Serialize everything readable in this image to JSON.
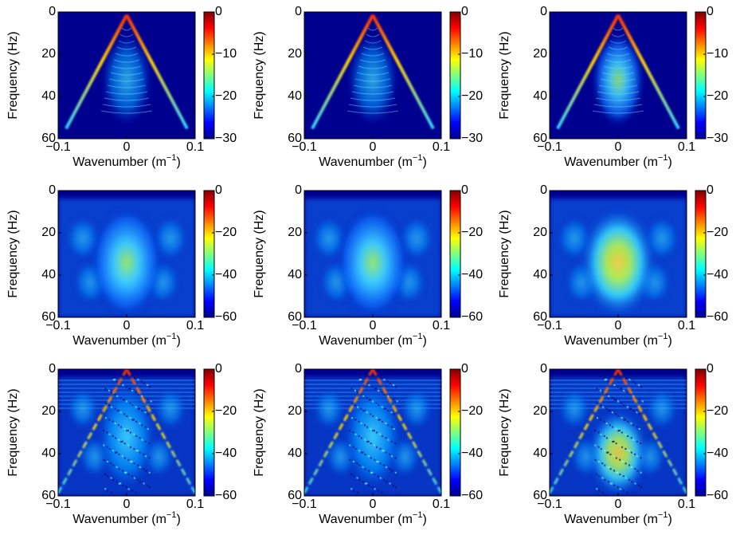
{
  "chart_data": [
    {
      "type": "heatmap",
      "colormap": "jet",
      "xlabel": [
        "Wavenumber (m",
        "−1",
        ")"
      ],
      "ylabel": "Frequency (Hz)",
      "xlim": [
        -0.1,
        0.1
      ],
      "xticks": [
        {
          "value": -0.1,
          "label": "−0.1"
        },
        0,
        0.1
      ],
      "ylim": [
        60,
        0
      ],
      "yticks": [
        0,
        20,
        40,
        60
      ],
      "clim": [
        -30,
        0
      ],
      "cticks": [
        {
          "value": -30,
          "label": "−30"
        },
        {
          "value": -20,
          "label": "−20"
        },
        {
          "value": -10,
          "label": "−10"
        },
        0
      ]
    },
    {
      "type": "heatmap",
      "colormap": "jet",
      "xlabel": [
        "Wavenumber (m",
        "−1",
        ")"
      ],
      "ylabel": "Frequency (Hz)",
      "xlim": [
        -0.1,
        0.1
      ],
      "xticks": [
        {
          "value": -0.1,
          "label": "−0.1"
        },
        0,
        0.1
      ],
      "ylim": [
        60,
        0
      ],
      "yticks": [
        0,
        20,
        40,
        60
      ],
      "clim": [
        -30,
        0
      ],
      "cticks": [
        {
          "value": -30,
          "label": "−30"
        },
        {
          "value": -20,
          "label": "−20"
        },
        {
          "value": -10,
          "label": "−10"
        },
        0
      ]
    },
    {
      "type": "heatmap",
      "colormap": "jet",
      "xlabel": [
        "Wavenumber (m",
        "−1",
        ")"
      ],
      "ylabel": "Frequency (Hz)",
      "xlim": [
        -0.1,
        0.1
      ],
      "xticks": [
        {
          "value": -0.1,
          "label": "−0.1"
        },
        0,
        0.1
      ],
      "ylim": [
        60,
        0
      ],
      "yticks": [
        0,
        20,
        40,
        60
      ],
      "clim": [
        -30,
        0
      ],
      "cticks": [
        {
          "value": -30,
          "label": "−30"
        },
        {
          "value": -20,
          "label": "−20"
        },
        {
          "value": -10,
          "label": "−10"
        },
        0
      ]
    },
    {
      "type": "heatmap",
      "colormap": "jet",
      "xlabel": [
        "Wavenumber (m",
        "−1",
        ")"
      ],
      "ylabel": "Frequency (Hz)",
      "xlim": [
        -0.1,
        0.1
      ],
      "xticks": [
        {
          "value": -0.1,
          "label": "−0.1"
        },
        0,
        0.1
      ],
      "ylim": [
        60,
        0
      ],
      "yticks": [
        0,
        20,
        40,
        60
      ],
      "clim": [
        -60,
        0
      ],
      "cticks": [
        {
          "value": -60,
          "label": "−60"
        },
        {
          "value": -40,
          "label": "−40"
        },
        {
          "value": -20,
          "label": "−20"
        },
        0
      ]
    },
    {
      "type": "heatmap",
      "colormap": "jet",
      "xlabel": [
        "Wavenumber (m",
        "−1",
        ")"
      ],
      "ylabel": "Frequency (Hz)",
      "xlim": [
        -0.1,
        0.1
      ],
      "xticks": [
        {
          "value": -0.1,
          "label": "−0.1"
        },
        0,
        0.1
      ],
      "ylim": [
        60,
        0
      ],
      "yticks": [
        0,
        20,
        40,
        60
      ],
      "clim": [
        -60,
        0
      ],
      "cticks": [
        {
          "value": -60,
          "label": "−60"
        },
        {
          "value": -40,
          "label": "−40"
        },
        {
          "value": -20,
          "label": "−20"
        },
        0
      ]
    },
    {
      "type": "heatmap",
      "colormap": "jet",
      "xlabel": [
        "Wavenumber (m",
        "−1",
        ")"
      ],
      "ylabel": "Frequency (Hz)",
      "xlim": [
        -0.1,
        0.1
      ],
      "xticks": [
        {
          "value": -0.1,
          "label": "−0.1"
        },
        0,
        0.1
      ],
      "ylim": [
        60,
        0
      ],
      "yticks": [
        0,
        20,
        40,
        60
      ],
      "clim": [
        -60,
        0
      ],
      "cticks": [
        {
          "value": -60,
          "label": "−60"
        },
        {
          "value": -40,
          "label": "−40"
        },
        {
          "value": -20,
          "label": "−20"
        },
        0
      ]
    },
    {
      "type": "heatmap",
      "colormap": "jet",
      "xlabel": [
        "Wavenumber (m",
        "−1",
        ")"
      ],
      "ylabel": "Frequency (Hz)",
      "xlim": [
        -0.1,
        0.1
      ],
      "xticks": [
        {
          "value": -0.1,
          "label": "−0.1"
        },
        0,
        0.1
      ],
      "ylim": [
        60,
        0
      ],
      "yticks": [
        0,
        20,
        40,
        60
      ],
      "clim": [
        -60,
        0
      ],
      "cticks": [
        {
          "value": -60,
          "label": "−60"
        },
        {
          "value": -40,
          "label": "−40"
        },
        {
          "value": -20,
          "label": "−20"
        },
        0
      ]
    },
    {
      "type": "heatmap",
      "colormap": "jet",
      "xlabel": [
        "Wavenumber (m",
        "−1",
        ")"
      ],
      "ylabel": "Frequency (Hz)",
      "xlim": [
        -0.1,
        0.1
      ],
      "xticks": [
        {
          "value": -0.1,
          "label": "−0.1"
        },
        0,
        0.1
      ],
      "ylim": [
        60,
        0
      ],
      "yticks": [
        0,
        20,
        40,
        60
      ],
      "clim": [
        -60,
        0
      ],
      "cticks": [
        {
          "value": -60,
          "label": "−60"
        },
        {
          "value": -40,
          "label": "−40"
        },
        {
          "value": -20,
          "label": "−20"
        },
        0
      ]
    },
    {
      "type": "heatmap",
      "colormap": "jet",
      "xlabel": [
        "Wavenumber (m",
        "−1",
        ")"
      ],
      "ylabel": "Frequency (Hz)",
      "xlim": [
        -0.1,
        0.1
      ],
      "xticks": [
        {
          "value": -0.1,
          "label": "−0.1"
        },
        0,
        0.1
      ],
      "ylim": [
        60,
        0
      ],
      "yticks": [
        0,
        20,
        40,
        60
      ],
      "clim": [
        -60,
        0
      ],
      "cticks": [
        {
          "value": -60,
          "label": "−60"
        },
        {
          "value": -40,
          "label": "−40"
        },
        {
          "value": -20,
          "label": "−20"
        },
        0
      ]
    }
  ]
}
